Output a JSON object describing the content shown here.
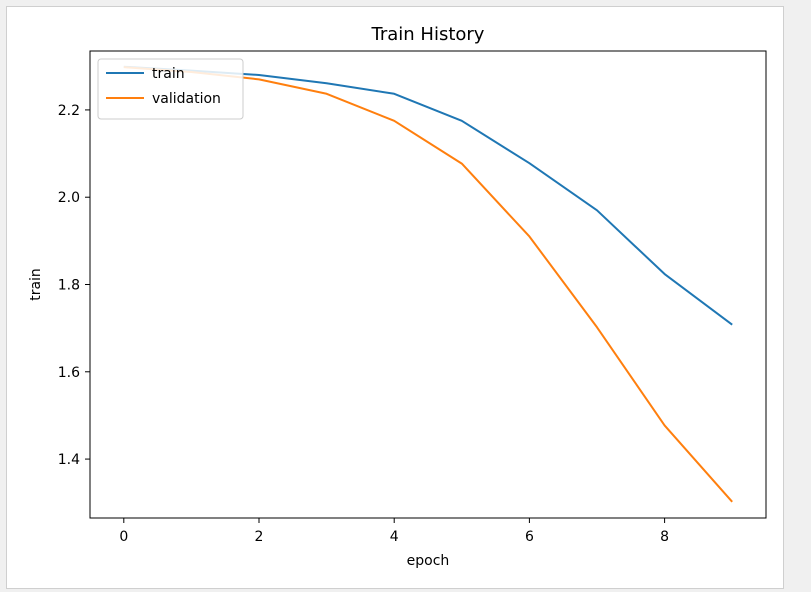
{
  "chart_data": {
    "type": "line",
    "title": "Train History",
    "xlabel": "epoch",
    "ylabel": "train",
    "xlim": [
      -0.5,
      9.5
    ],
    "ylim": [
      1.265,
      2.335
    ],
    "xticks": [
      0,
      2,
      4,
      6,
      8
    ],
    "yticks": [
      1.4,
      1.6,
      1.8,
      2.0,
      2.2
    ],
    "ytick_labels": [
      "1.4",
      "1.6",
      "1.8",
      "2.0",
      "2.2"
    ],
    "xtick_labels": [
      "0",
      "2",
      "4",
      "6",
      "8"
    ],
    "x": [
      0,
      1,
      2,
      3,
      4,
      5,
      6,
      7,
      8,
      9
    ],
    "series": [
      {
        "name": "train",
        "color": "#1f77b4",
        "values": [
          2.299,
          2.29,
          2.28,
          2.261,
          2.237,
          2.175,
          2.078,
          1.97,
          1.824,
          1.708
        ]
      },
      {
        "name": "validation",
        "color": "#ff7f0e",
        "values": [
          2.298,
          2.287,
          2.27,
          2.237,
          2.175,
          2.077,
          1.91,
          1.702,
          1.477,
          1.302
        ]
      }
    ],
    "legend_position": "upper-left",
    "grid": false
  }
}
